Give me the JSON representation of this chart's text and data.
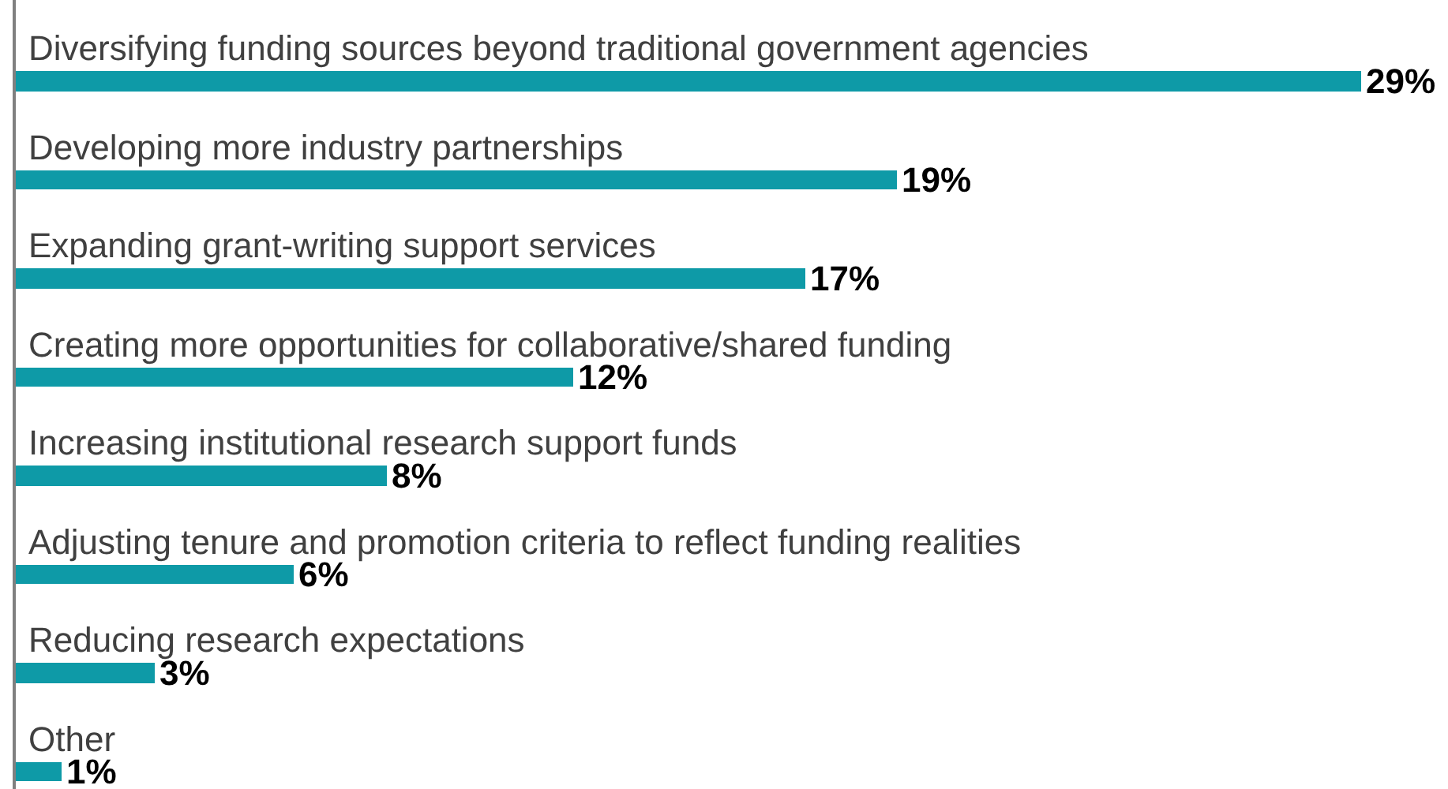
{
  "chart_data": {
    "type": "bar",
    "orientation": "horizontal",
    "categories": [
      "Diversifying funding sources beyond traditional government agencies",
      "Developing more industry partnerships",
      "Expanding grant-writing support services",
      "Creating more opportunities for collaborative/shared funding",
      "Increasing institutional research support funds",
      "Adjusting tenure and promotion criteria to reflect funding realities",
      "Reducing research expectations",
      "Other"
    ],
    "values": [
      29,
      19,
      17,
      12,
      8,
      6,
      3,
      1
    ],
    "value_labels": [
      "29%",
      "19%",
      "17%",
      "12%",
      "8%",
      "6%",
      "3%",
      "1%"
    ],
    "color": "#0e9aa7"
  }
}
